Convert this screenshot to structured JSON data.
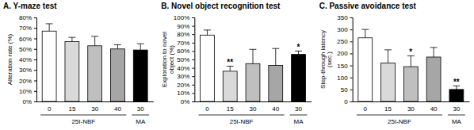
{
  "chart_data": [
    {
      "type": "bar",
      "title": "A. Y-maze test",
      "y_label": "Alteration rate (%)",
      "categories": [
        "0",
        "15",
        "30",
        "40",
        "30"
      ],
      "group_labels": [
        "25I-NBF",
        "25I-NBF",
        "25I-NBF",
        "25I-NBF",
        "MA"
      ],
      "values": [
        67,
        57,
        53,
        50,
        49
      ],
      "errors": [
        7,
        4,
        9,
        4,
        6
      ],
      "annotations": [
        null,
        null,
        null,
        null,
        null
      ],
      "colors": [
        "#ffffff",
        "#d9d9d9",
        "#bfbfbf",
        "#a6a6a6",
        "#000000"
      ],
      "ylim": [
        0,
        80
      ],
      "yticks": [
        {
          "value": 0,
          "label": "0%"
        },
        {
          "value": 10,
          "label": "10%"
        },
        {
          "value": 20,
          "label": "20%"
        },
        {
          "value": 30,
          "label": "30%"
        },
        {
          "value": 40,
          "label": "40%"
        },
        {
          "value": 50,
          "label": "50%"
        },
        {
          "value": 60,
          "label": "60%"
        },
        {
          "value": 70,
          "label": "70%"
        },
        {
          "value": 80,
          "label": "80%"
        }
      ]
    },
    {
      "type": "bar",
      "title": "B. Novel object recognition test",
      "y_label": "Exploration to novel object (%)",
      "categories": [
        "0",
        "15",
        "30",
        "40",
        "30"
      ],
      "group_labels": [
        "25I-NBF",
        "25I-NBF",
        "25I-NBF",
        "25I-NBF",
        "MA"
      ],
      "values": [
        79,
        36,
        45,
        43,
        56
      ],
      "errors": [
        6,
        6,
        17,
        20,
        4
      ],
      "annotations": [
        null,
        "**",
        null,
        null,
        "*"
      ],
      "colors": [
        "#ffffff",
        "#d9d9d9",
        "#bfbfbf",
        "#a6a6a6",
        "#000000"
      ],
      "ylim": [
        0,
        100
      ],
      "yticks": [
        {
          "value": 0,
          "label": "0%"
        },
        {
          "value": 10,
          "label": "10%"
        },
        {
          "value": 20,
          "label": "20%"
        },
        {
          "value": 30,
          "label": "30%"
        },
        {
          "value": 40,
          "label": "40%"
        },
        {
          "value": 50,
          "label": "50%"
        },
        {
          "value": 60,
          "label": "60%"
        },
        {
          "value": 70,
          "label": "70%"
        },
        {
          "value": 80,
          "label": "80%"
        },
        {
          "value": 90,
          "label": "90%"
        },
        {
          "value": 100,
          "label": "100%"
        }
      ]
    },
    {
      "type": "bar",
      "title": "C. Passive avoidance test",
      "y_label": "Step-through latency (sec.)",
      "categories": [
        "0",
        "15",
        "30",
        "40",
        "30"
      ],
      "group_labels": [
        "25I-NBF",
        "25I-NBF",
        "25I-NBF",
        "25I-NBF",
        "MA"
      ],
      "values": [
        265,
        160,
        145,
        185,
        50
      ],
      "errors": [
        35,
        55,
        45,
        40,
        15
      ],
      "annotations": [
        null,
        null,
        "*",
        null,
        "**"
      ],
      "colors": [
        "#ffffff",
        "#d9d9d9",
        "#bfbfbf",
        "#a6a6a6",
        "#000000"
      ],
      "ylim": [
        0,
        350
      ],
      "yticks": [
        0,
        50,
        100,
        150,
        200,
        250,
        300,
        350
      ]
    }
  ]
}
